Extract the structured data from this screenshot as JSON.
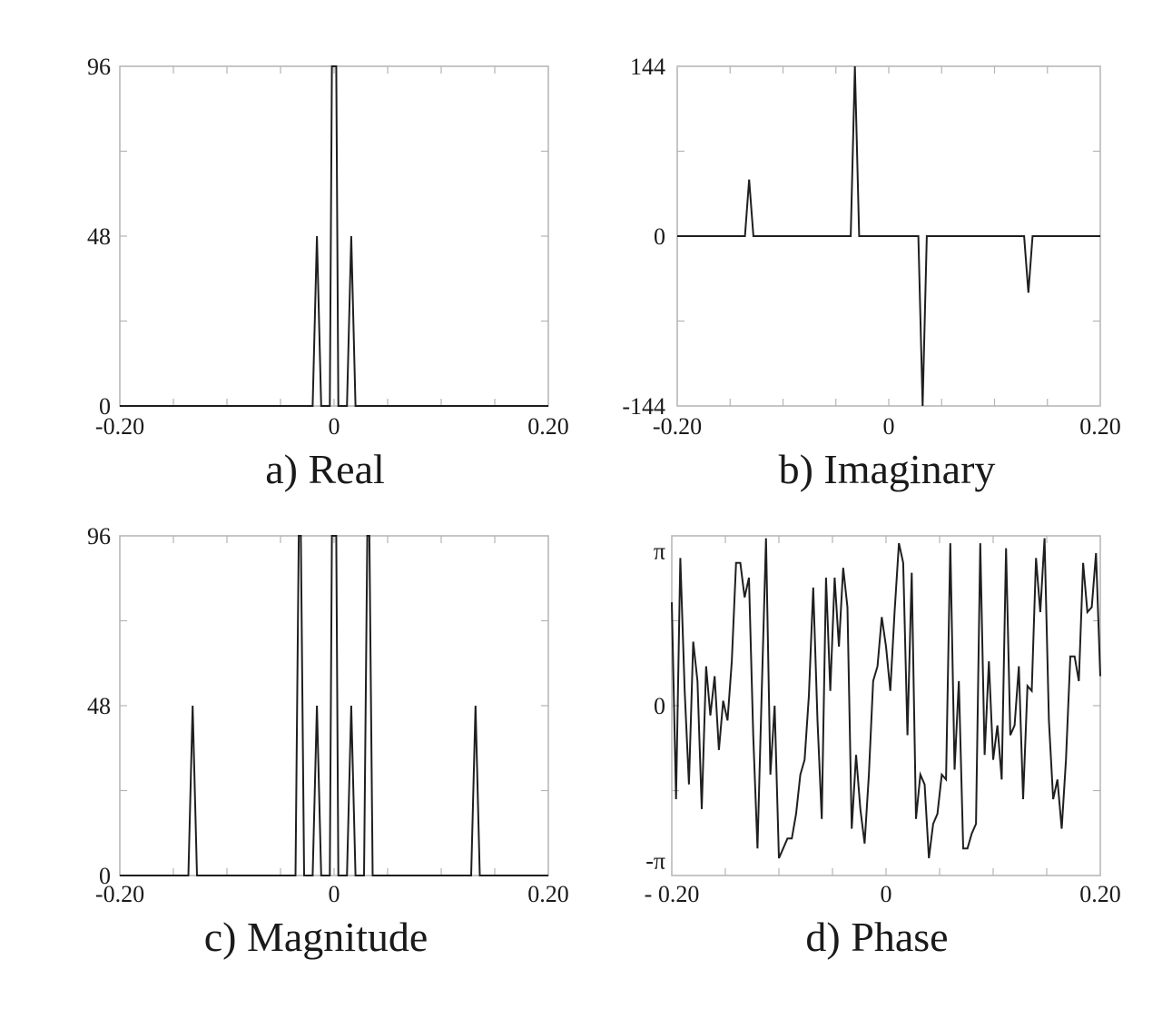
{
  "chart_data": [
    {
      "type": "line",
      "caption": "a) Real",
      "x_tick_labels": [
        "-0.20",
        "0",
        "0.20"
      ],
      "x_tick_values": [
        -0.2,
        0,
        0.2
      ],
      "y_tick_labels": [
        "0",
        "48",
        "96"
      ],
      "y_tick_values": [
        0,
        48,
        96
      ],
      "xlim": [
        -0.2,
        0.2
      ],
      "ylim": [
        0,
        96
      ],
      "grid": false,
      "series": [
        {
          "x": [
            -0.2,
            -0.02,
            -0.016,
            -0.012,
            -0.004,
            -0.002,
            0.002,
            0.004,
            0.012,
            0.016,
            0.02,
            0.2
          ],
          "y": [
            0,
            0,
            48,
            0,
            0,
            96,
            96,
            0,
            0,
            48,
            0,
            0
          ]
        }
      ]
    },
    {
      "type": "line",
      "caption": "b)  Imaginary",
      "x_tick_labels": [
        "-0.20",
        "0",
        "0.20"
      ],
      "x_tick_values": [
        -0.2,
        0,
        0.2
      ],
      "y_tick_labels": [
        "-144",
        "0",
        "144"
      ],
      "y_tick_values": [
        -144,
        0,
        144
      ],
      "xlim": [
        -0.2,
        0.2
      ],
      "ylim": [
        -144,
        144
      ],
      "grid": false,
      "series": [
        {
          "x": [
            -0.2,
            -0.136,
            -0.132,
            -0.128,
            -0.036,
            -0.032,
            -0.028,
            0.028,
            0.032,
            0.036,
            0.128,
            0.132,
            0.136,
            0.2
          ],
          "y": [
            0,
            0,
            48,
            0,
            0,
            144,
            0,
            0,
            -144,
            0,
            0,
            -48,
            0,
            0
          ]
        }
      ]
    },
    {
      "type": "line",
      "caption": "c) Magnitude",
      "x_tick_labels": [
        "-0.20",
        "0",
        "0.20"
      ],
      "x_tick_values": [
        -0.2,
        0,
        0.2
      ],
      "y_tick_labels": [
        "0",
        "48",
        "96"
      ],
      "y_tick_values": [
        0,
        48,
        96
      ],
      "xlim": [
        -0.2,
        0.2
      ],
      "ylim": [
        0,
        96
      ],
      "grid": false,
      "series": [
        {
          "x": [
            -0.2,
            -0.136,
            -0.132,
            -0.128,
            -0.036,
            -0.033,
            -0.031,
            -0.028,
            -0.02,
            -0.016,
            -0.012,
            -0.004,
            -0.002,
            0.002,
            0.004,
            0.012,
            0.016,
            0.02,
            0.028,
            0.031,
            0.033,
            0.036,
            0.128,
            0.132,
            0.136,
            0.2
          ],
          "y": [
            0,
            0,
            48,
            0,
            0,
            96,
            96,
            0,
            0,
            48,
            0,
            0,
            96,
            96,
            0,
            0,
            48,
            0,
            0,
            96,
            96,
            0,
            0,
            48,
            0,
            0
          ]
        }
      ]
    },
    {
      "type": "line",
      "caption": "d)  Phase",
      "x_tick_labels": [
        "- 0.20",
        "0",
        "0.20"
      ],
      "x_tick_values": [
        -0.2,
        0,
        0.2
      ],
      "y_tick_labels": [
        "-π",
        "0",
        "π"
      ],
      "y_tick_values": [
        -3.1416,
        0,
        3.1416
      ],
      "xlim": [
        -0.2,
        0.2
      ],
      "ylim": [
        -3.45,
        3.45
      ],
      "grid": false,
      "series": [
        {
          "x": [
            -0.2,
            -0.196,
            -0.192,
            -0.188,
            -0.184,
            -0.18,
            -0.176,
            -0.172,
            -0.168,
            -0.164,
            -0.16,
            -0.156,
            -0.152,
            -0.148,
            -0.144,
            -0.14,
            -0.136,
            -0.132,
            -0.128,
            -0.124,
            -0.12,
            -0.116,
            -0.112,
            -0.108,
            -0.104,
            -0.1,
            -0.096,
            -0.092,
            -0.088,
            -0.084,
            -0.08,
            -0.076,
            -0.072,
            -0.068,
            -0.064,
            -0.06,
            -0.056,
            -0.052,
            -0.048,
            -0.044,
            -0.04,
            -0.036,
            -0.032,
            -0.028,
            -0.024,
            -0.02,
            -0.016,
            -0.012,
            -0.008,
            -0.004,
            0,
            0.004,
            0.008,
            0.012,
            0.016,
            0.02,
            0.024,
            0.028,
            0.032,
            0.036,
            0.04,
            0.044,
            0.048,
            0.052,
            0.056,
            0.06,
            0.064,
            0.068,
            0.072,
            0.076,
            0.08,
            0.084,
            0.088,
            0.092,
            0.096,
            0.1,
            0.104,
            0.108,
            0.112,
            0.116,
            0.12,
            0.124,
            0.128,
            0.132,
            0.136,
            0.14,
            0.144,
            0.148,
            0.152,
            0.156,
            0.16,
            0.164,
            0.168,
            0.172,
            0.176,
            0.18,
            0.184,
            0.188,
            0.192,
            0.196,
            0.2
          ],
          "y": [
            2.1,
            -1.9,
            3.0,
            0.3,
            -1.6,
            1.3,
            0.5,
            -2.1,
            0.8,
            -0.2,
            0.6,
            -0.9,
            0.1,
            -0.3,
            0.9,
            2.9,
            2.9,
            2.2,
            2.6,
            -0.6,
            -2.9,
            0.3,
            3.4,
            -1.4,
            0.0,
            -3.1,
            -2.9,
            -2.7,
            -2.7,
            -2.2,
            -1.4,
            -1.1,
            0.2,
            2.4,
            -0.3,
            -2.3,
            2.6,
            0.3,
            2.6,
            1.2,
            2.8,
            2.0,
            -2.5,
            -1.0,
            -2.1,
            -2.8,
            -1.4,
            0.5,
            0.8,
            1.8,
            1.2,
            0.3,
            1.9,
            3.3,
            2.9,
            -0.6,
            2.7,
            -2.3,
            -1.4,
            -1.6,
            -3.1,
            -2.4,
            -2.2,
            -1.4,
            -1.5,
            3.3,
            -1.3,
            0.5,
            -2.9,
            -2.9,
            -2.6,
            -2.4,
            3.3,
            -1.0,
            0.9,
            -1.1,
            -0.4,
            -1.5,
            3.2,
            -0.6,
            -0.4,
            0.8,
            -1.9,
            0.4,
            0.3,
            3.0,
            1.9,
            3.4,
            -0.3,
            -1.9,
            -1.5,
            -2.5,
            -1.1,
            1.0,
            1.0,
            0.5,
            2.9,
            1.9,
            2.0,
            3.1,
            0.6
          ]
        }
      ]
    }
  ]
}
